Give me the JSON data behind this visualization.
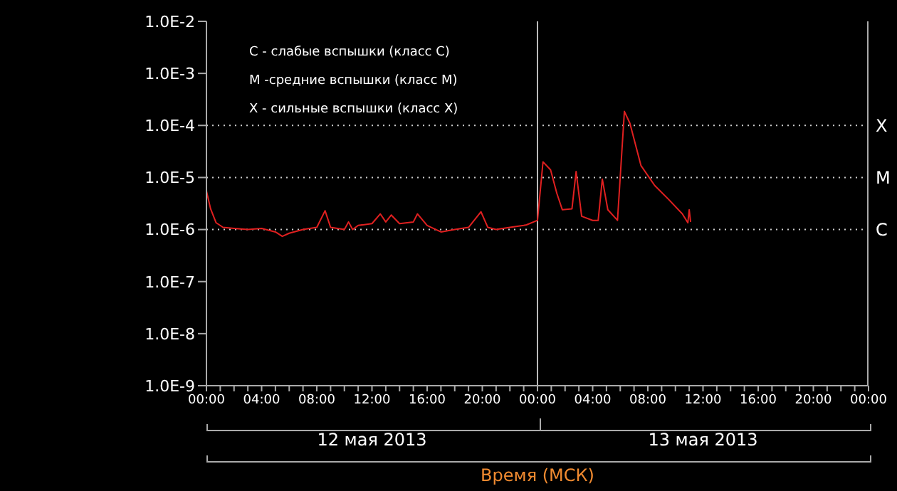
{
  "chart_data": {
    "type": "line",
    "xlabel": "Время (МСК)",
    "annotations": [
      "C - слабые вспышки (класс C)",
      "M -средние вспышки (класс M)",
      "X - сильные вспышки (класс X)",
      "12 мая 2013",
      "13 мая 2013"
    ],
    "x": [
      "2013-05-12T00:00",
      "2013-05-12T00:18",
      "2013-05-12T00:42",
      "2013-05-12T01:12",
      "2013-05-12T02:00",
      "2013-05-12T03:00",
      "2013-05-12T04:00",
      "2013-05-12T05:00",
      "2013-05-12T05:30",
      "2013-05-12T06:00",
      "2013-05-12T07:00",
      "2013-05-12T08:00",
      "2013-05-12T08:36",
      "2013-05-12T09:00",
      "2013-05-12T10:00",
      "2013-05-12T10:18",
      "2013-05-12T10:36",
      "2013-05-12T11:00",
      "2013-05-12T12:00",
      "2013-05-12T12:36",
      "2013-05-12T13:00",
      "2013-05-12T13:24",
      "2013-05-12T14:00",
      "2013-05-12T15:00",
      "2013-05-12T15:18",
      "2013-05-12T16:00",
      "2013-05-12T17:00",
      "2013-05-12T18:00",
      "2013-05-12T19:00",
      "2013-05-12T19:54",
      "2013-05-12T20:24",
      "2013-05-12T21:00",
      "2013-05-12T22:00",
      "2013-05-12T23:00",
      "2013-05-12T23:12",
      "2013-05-13T00:00",
      "2013-05-13T00:24",
      "2013-05-13T00:57",
      "2013-05-13T01:24",
      "2013-05-13T01:48",
      "2013-05-13T02:30",
      "2013-05-13T02:48",
      "2013-05-13T03:12",
      "2013-05-13T04:00",
      "2013-05-13T04:24",
      "2013-05-13T04:42",
      "2013-05-13T05:06",
      "2013-05-13T05:48",
      "2013-05-13T06:18",
      "2013-05-13T06:42",
      "2013-05-13T07:30",
      "2013-05-13T08:30",
      "2013-05-13T09:30",
      "2013-05-13T10:30",
      "2013-05-13T10:54",
      "2013-05-13T11:00",
      "2013-05-13T11:06"
    ],
    "series": [
      {
        "color": "#e02020",
        "values": [
          5.5e-06,
          2.5e-06,
          1.35e-06,
          1.1e-06,
          1.05e-06,
          1e-06,
          1.05e-06,
          9e-07,
          7.4e-07,
          8.5e-07,
          1e-06,
          1.1e-06,
          2.3e-06,
          1.1e-06,
          1e-06,
          1.4e-06,
          1e-06,
          1.2e-06,
          1.3e-06,
          2e-06,
          1.4e-06,
          1.9e-06,
          1.3e-06,
          1.4e-06,
          2e-06,
          1.2e-06,
          9e-07,
          1e-06,
          1.1e-06,
          2.2e-06,
          1.1e-06,
          1e-06,
          1.1e-06,
          1.2e-06,
          1.23e-06,
          1.5e-06,
          2e-05,
          1.4e-05,
          5e-06,
          2.4e-06,
          2.5e-06,
          1.3e-05,
          1.8e-06,
          1.5e-06,
          1.5e-06,
          9.3e-06,
          2.4e-06,
          1.5e-06,
          0.000186,
          0.00011,
          1.7e-05,
          7e-06,
          3.8e-06,
          2e-06,
          1.35e-06,
          2.4e-06,
          1.4e-06
        ]
      }
    ],
    "xlim": [
      "2013-05-12T00:00",
      "2013-05-14T00:00"
    ],
    "xticks": [
      {
        "value": "2013-05-12T00:00",
        "label": "00:00"
      },
      {
        "value": "2013-05-12T01:00",
        "label": null
      },
      {
        "value": "2013-05-12T02:00",
        "label": null
      },
      {
        "value": "2013-05-12T03:00",
        "label": null
      },
      {
        "value": "2013-05-12T04:00",
        "label": "04:00"
      },
      {
        "value": "2013-05-12T05:00",
        "label": null
      },
      {
        "value": "2013-05-12T06:00",
        "label": null
      },
      {
        "value": "2013-05-12T07:00",
        "label": null
      },
      {
        "value": "2013-05-12T08:00",
        "label": "08:00"
      },
      {
        "value": "2013-05-12T09:00",
        "label": null
      },
      {
        "value": "2013-05-12T10:00",
        "label": null
      },
      {
        "value": "2013-05-12T11:00",
        "label": null
      },
      {
        "value": "2013-05-12T12:00",
        "label": "12:00"
      },
      {
        "value": "2013-05-12T13:00",
        "label": null
      },
      {
        "value": "2013-05-12T14:00",
        "label": null
      },
      {
        "value": "2013-05-12T15:00",
        "label": null
      },
      {
        "value": "2013-05-12T16:00",
        "label": "16:00"
      },
      {
        "value": "2013-05-12T17:00",
        "label": null
      },
      {
        "value": "2013-05-12T18:00",
        "label": null
      },
      {
        "value": "2013-05-12T19:00",
        "label": null
      },
      {
        "value": "2013-05-12T20:00",
        "label": "20:00"
      },
      {
        "value": "2013-05-12T21:00",
        "label": null
      },
      {
        "value": "2013-05-12T22:00",
        "label": null
      },
      {
        "value": "2013-05-12T23:00",
        "label": null
      },
      {
        "value": "2013-05-13T00:00",
        "label": "00:00"
      },
      {
        "value": "2013-05-13T01:00",
        "label": null
      },
      {
        "value": "2013-05-13T02:00",
        "label": null
      },
      {
        "value": "2013-05-13T03:00",
        "label": null
      },
      {
        "value": "2013-05-13T04:00",
        "label": "04:00"
      },
      {
        "value": "2013-05-13T05:00",
        "label": null
      },
      {
        "value": "2013-05-13T06:00",
        "label": null
      },
      {
        "value": "2013-05-13T07:00",
        "label": null
      },
      {
        "value": "2013-05-13T08:00",
        "label": "08:00"
      },
      {
        "value": "2013-05-13T09:00",
        "label": null
      },
      {
        "value": "2013-05-13T10:00",
        "label": null
      },
      {
        "value": "2013-05-13T11:00",
        "label": null
      },
      {
        "value": "2013-05-13T12:00",
        "label": "12:00"
      },
      {
        "value": "2013-05-13T13:00",
        "label": null
      },
      {
        "value": "2013-05-13T14:00",
        "label": null
      },
      {
        "value": "2013-05-13T15:00",
        "label": null
      },
      {
        "value": "2013-05-13T16:00",
        "label": "16:00"
      },
      {
        "value": "2013-05-13T17:00",
        "label": null
      },
      {
        "value": "2013-05-13T18:00",
        "label": null
      },
      {
        "value": "2013-05-13T19:00",
        "label": null
      },
      {
        "value": "2013-05-13T20:00",
        "label": "20:00"
      },
      {
        "value": "2013-05-13T21:00",
        "label": null
      },
      {
        "value": "2013-05-13T22:00",
        "label": null
      },
      {
        "value": "2013-05-13T23:00",
        "label": null
      },
      {
        "value": "2013-05-14T00:00",
        "label": "00:00"
      }
    ],
    "ylim": [
      1e-09,
      0.01
    ],
    "yticks": [
      {
        "value": 1e-09,
        "label": "1.0E-9"
      },
      {
        "value": 1e-08,
        "label": "1.0E-8"
      },
      {
        "value": 1e-07,
        "label": "1.0E-7"
      },
      {
        "value": 1e-06,
        "label": "1.0E-6"
      },
      {
        "value": 1e-05,
        "label": "1.0E-5"
      },
      {
        "value": 0.0001,
        "label": "1.0E-4"
      },
      {
        "value": 0.001,
        "label": "1.0E-3"
      },
      {
        "value": 0.01,
        "label": "1.0E-2"
      }
    ],
    "log": true,
    "ref_lines": [
      {
        "axis": "y",
        "value": 1e-06,
        "label": "C",
        "color": "#cccccc",
        "line_style": "dotted"
      },
      {
        "axis": "y",
        "value": 1e-05,
        "label": "M",
        "color": "#cccccc",
        "line_style": "dotted"
      },
      {
        "axis": "y",
        "value": 0.0001,
        "label": "X",
        "color": "#cccccc",
        "line_style": "dotted"
      },
      {
        "axis": "x",
        "value": "2013-05-13T00:00",
        "label": null,
        "color": "#bbbbbb",
        "line_style": "solid"
      }
    ]
  }
}
